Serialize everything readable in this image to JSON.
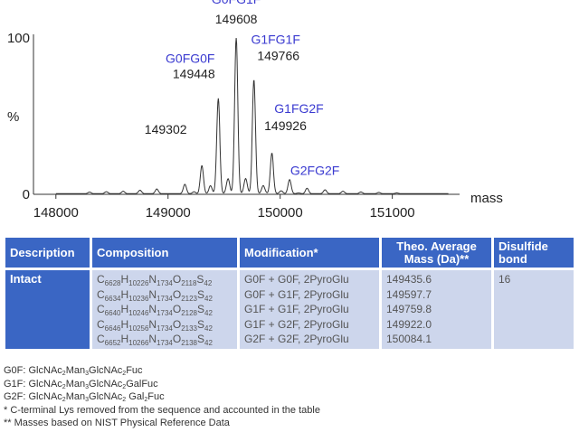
{
  "chart_data": {
    "type": "line",
    "title": "",
    "xlabel": "mass",
    "ylabel": "%",
    "xlim": [
      147800,
      151600
    ],
    "ylim": [
      0,
      100
    ],
    "xticks": [
      148000,
      149000,
      150000,
      151000
    ],
    "yticks": [
      0,
      100
    ],
    "grid": false,
    "peaks": [
      {
        "mass": 149302,
        "intensity": 18,
        "mass_label": "149302",
        "glycan": ""
      },
      {
        "mass": 149448,
        "intensity": 61,
        "mass_label": "149448",
        "glycan": "G0FG0F"
      },
      {
        "mass": 149608,
        "intensity": 100,
        "mass_label": "149608",
        "glycan": "G0FG1F"
      },
      {
        "mass": 149766,
        "intensity": 73,
        "mass_label": "149766",
        "glycan": "G1FG1F"
      },
      {
        "mass": 149926,
        "intensity": 26,
        "mass_label": "149926",
        "glycan": "G1FG2F"
      },
      {
        "mass": 150084,
        "intensity": 9,
        "mass_label": "",
        "glycan": "G2FG2F"
      }
    ]
  },
  "table": {
    "headers": {
      "description": "Description",
      "composition": "Composition",
      "modification": "Modification*",
      "mass": "Theo. Average Mass (Da)**",
      "disulfide": "Disulfide bond"
    },
    "description": "Intact",
    "disulfide": "16",
    "rows": [
      {
        "c": "6628",
        "h": "10226",
        "n": "1734",
        "o": "2118",
        "s": "42",
        "modification": "G0F + G0F, 2PyroGlu",
        "mass": "149435.6"
      },
      {
        "c": "6634",
        "h": "10236",
        "n": "1734",
        "o": "2123",
        "s": "42",
        "modification": "G0F + G1F, 2PyroGlu",
        "mass": "149597.7"
      },
      {
        "c": "6640",
        "h": "10246",
        "n": "1734",
        "o": "2128",
        "s": "42",
        "modification": "G1F + G1F, 2PyroGlu",
        "mass": "149759.8"
      },
      {
        "c": "6646",
        "h": "10256",
        "n": "1734",
        "o": "2133",
        "s": "42",
        "modification": "G1F + G2F, 2PyroGlu",
        "mass": "149922.0"
      },
      {
        "c": "6652",
        "h": "10266",
        "n": "1734",
        "o": "2138",
        "s": "42",
        "modification": "G2F + G2F, 2PyroGlu",
        "mass": "150084.1"
      }
    ]
  },
  "footnotes": {
    "g0f": {
      "lead": "G0F: GlcNAc",
      "s1": "2",
      "mid": "Man",
      "s2": "3",
      "mid2": "GlcNAc",
      "s3": "2",
      "tail": "Fuc"
    },
    "g1f": {
      "lead": "G1F: GlcNAc",
      "s1": "2",
      "mid": "Man",
      "s2": "3",
      "mid2": "GlcNAc",
      "s3": "2",
      "tail": "GalFuc"
    },
    "g2f": {
      "lead": "G2F: GlcNAc",
      "s1": "2",
      "mid": "Man",
      "s2": "3",
      "mid2": "GlcNAc",
      "s3": "2",
      "mid3": " Gal",
      "s4": "2",
      "tail": "Fuc"
    },
    "star1": "*   C-terminal Lys removed from the sequence and accounted in the table",
    "star2": "**  Masses based on NIST Physical Reference Data"
  },
  "colors": {
    "header_blue": "#3a66c4",
    "cell_fill": "#cdd6ec",
    "glycan_label": "#3a3ad0"
  }
}
